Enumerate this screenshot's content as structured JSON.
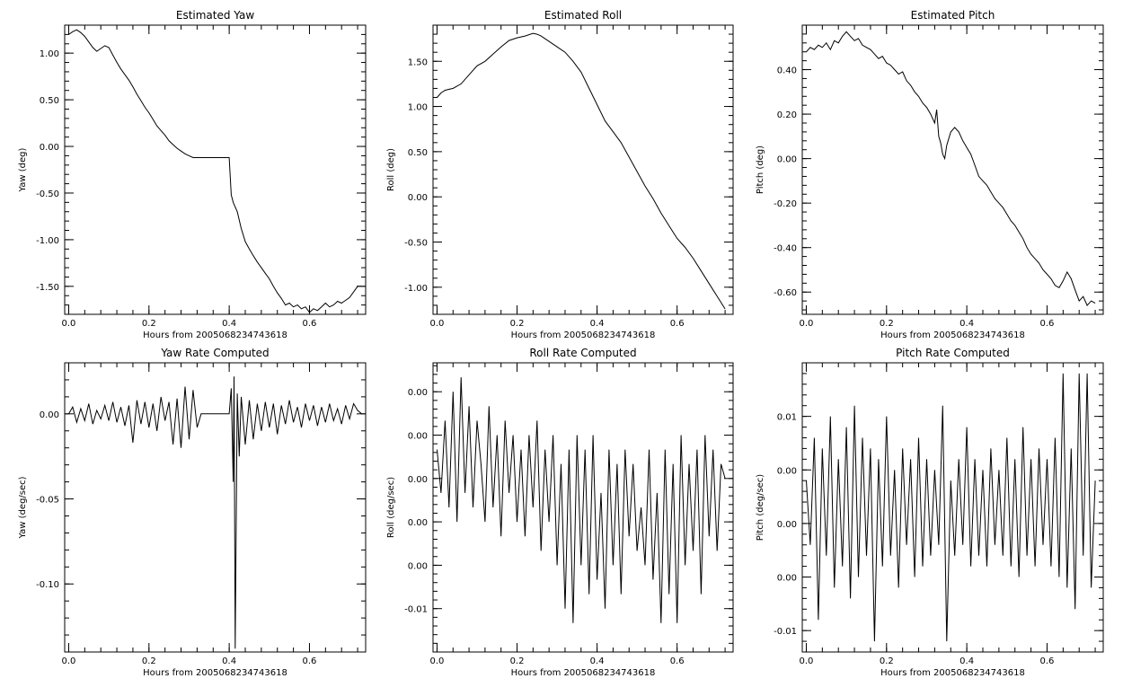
{
  "chart_data": [
    {
      "type": "line",
      "title": "Estimated Yaw",
      "xlabel": "Hours from 2005068234743618",
      "ylabel": "Yaw (deg)",
      "xlim": [
        -0.01,
        0.74
      ],
      "ylim": [
        -1.8,
        1.3
      ],
      "xticks": [
        0.0,
        0.2,
        0.4,
        0.6
      ],
      "xtick_labels": [
        "0.0",
        "0.2",
        "0.4",
        "0.6"
      ],
      "yticks": [
        1.0,
        0.5,
        0.0,
        -0.5,
        -1.0,
        -1.5
      ],
      "ytick_labels": [
        "1.00",
        "0.50",
        "0.00",
        "-0.50",
        "-1.00",
        "-1.50"
      ],
      "x": [
        0.0,
        0.01,
        0.02,
        0.03,
        0.04,
        0.05,
        0.06,
        0.07,
        0.08,
        0.09,
        0.1,
        0.11,
        0.12,
        0.13,
        0.14,
        0.15,
        0.16,
        0.17,
        0.18,
        0.19,
        0.2,
        0.21,
        0.22,
        0.23,
        0.24,
        0.25,
        0.26,
        0.27,
        0.28,
        0.29,
        0.3,
        0.31,
        0.32,
        0.35,
        0.38,
        0.4,
        0.405,
        0.41,
        0.42,
        0.43,
        0.44,
        0.45,
        0.46,
        0.47,
        0.48,
        0.49,
        0.5,
        0.51,
        0.52,
        0.53,
        0.54,
        0.55,
        0.56,
        0.57,
        0.58,
        0.59,
        0.6,
        0.61,
        0.62,
        0.63,
        0.64,
        0.65,
        0.66,
        0.67,
        0.68,
        0.69,
        0.7,
        0.71,
        0.72,
        0.73
      ],
      "values": [
        1.2,
        1.23,
        1.25,
        1.22,
        1.18,
        1.12,
        1.06,
        1.02,
        1.05,
        1.08,
        1.06,
        0.98,
        0.9,
        0.83,
        0.77,
        0.71,
        0.64,
        0.56,
        0.49,
        0.42,
        0.36,
        0.29,
        0.22,
        0.17,
        0.12,
        0.06,
        0.02,
        -0.02,
        -0.05,
        -0.08,
        -0.1,
        -0.12,
        -0.12,
        -0.12,
        -0.12,
        -0.12,
        -0.52,
        -0.6,
        -0.7,
        -0.88,
        -1.02,
        -1.1,
        -1.17,
        -1.24,
        -1.3,
        -1.36,
        -1.42,
        -1.5,
        -1.57,
        -1.63,
        -1.7,
        -1.68,
        -1.72,
        -1.7,
        -1.74,
        -1.72,
        -1.78,
        -1.74,
        -1.76,
        -1.72,
        -1.68,
        -1.72,
        -1.7,
        -1.66,
        -1.68,
        -1.65,
        -1.62,
        -1.56,
        -1.5,
        -1.5
      ]
    },
    {
      "type": "line",
      "title": "Estimated Roll",
      "xlabel": "Hours from 2005068234743618",
      "ylabel": "Roll (deg)",
      "xlim": [
        -0.01,
        0.74
      ],
      "ylim": [
        -1.3,
        1.9
      ],
      "xticks": [
        0.0,
        0.2,
        0.4,
        0.6
      ],
      "xtick_labels": [
        "0.0",
        "0.2",
        "0.4",
        "0.6"
      ],
      "yticks": [
        1.5,
        1.0,
        0.5,
        0.0,
        -0.5,
        -1.0
      ],
      "ytick_labels": [
        "1.50",
        "1.00",
        "0.50",
        "0.00",
        "-0.50",
        "-1.00"
      ],
      "x": [
        0.0,
        0.01,
        0.02,
        0.04,
        0.06,
        0.08,
        0.1,
        0.12,
        0.14,
        0.16,
        0.18,
        0.2,
        0.22,
        0.24,
        0.25,
        0.26,
        0.28,
        0.3,
        0.32,
        0.34,
        0.36,
        0.38,
        0.4,
        0.42,
        0.44,
        0.46,
        0.48,
        0.5,
        0.52,
        0.54,
        0.56,
        0.58,
        0.6,
        0.62,
        0.64,
        0.66,
        0.68,
        0.7,
        0.72
      ],
      "values": [
        1.1,
        1.15,
        1.18,
        1.2,
        1.25,
        1.35,
        1.45,
        1.5,
        1.58,
        1.66,
        1.73,
        1.76,
        1.78,
        1.81,
        1.8,
        1.78,
        1.72,
        1.66,
        1.6,
        1.5,
        1.38,
        1.2,
        1.02,
        0.84,
        0.72,
        0.6,
        0.44,
        0.28,
        0.12,
        -0.02,
        -0.18,
        -0.32,
        -0.46,
        -0.56,
        -0.68,
        -0.82,
        -0.96,
        -1.1,
        -1.24
      ]
    },
    {
      "type": "line",
      "title": "Estimated Pitch",
      "xlabel": "Hours from 2005068234743618",
      "ylabel": "Pitch (deg)",
      "xlim": [
        -0.01,
        0.74
      ],
      "ylim": [
        -0.7,
        0.6
      ],
      "xticks": [
        0.0,
        0.2,
        0.4,
        0.6
      ],
      "xtick_labels": [
        "0.0",
        "0.2",
        "0.4",
        "0.6"
      ],
      "yticks": [
        0.4,
        0.2,
        0.0,
        -0.2,
        -0.4,
        -0.6
      ],
      "ytick_labels": [
        "0.40",
        "0.20",
        "0.00",
        "-0.20",
        "-0.40",
        "-0.60"
      ],
      "x": [
        0.0,
        0.01,
        0.02,
        0.03,
        0.04,
        0.05,
        0.06,
        0.07,
        0.08,
        0.09,
        0.1,
        0.11,
        0.12,
        0.13,
        0.14,
        0.15,
        0.16,
        0.17,
        0.18,
        0.19,
        0.2,
        0.21,
        0.22,
        0.23,
        0.24,
        0.25,
        0.26,
        0.27,
        0.28,
        0.29,
        0.3,
        0.31,
        0.32,
        0.325,
        0.33,
        0.335,
        0.34,
        0.345,
        0.35,
        0.36,
        0.37,
        0.38,
        0.39,
        0.4,
        0.41,
        0.42,
        0.43,
        0.44,
        0.45,
        0.46,
        0.47,
        0.48,
        0.49,
        0.5,
        0.51,
        0.52,
        0.53,
        0.54,
        0.55,
        0.56,
        0.57,
        0.58,
        0.59,
        0.6,
        0.61,
        0.62,
        0.63,
        0.64,
        0.65,
        0.66,
        0.67,
        0.68,
        0.69,
        0.7,
        0.71,
        0.72
      ],
      "values": [
        0.48,
        0.5,
        0.49,
        0.51,
        0.5,
        0.52,
        0.49,
        0.53,
        0.52,
        0.55,
        0.57,
        0.55,
        0.53,
        0.54,
        0.51,
        0.5,
        0.49,
        0.47,
        0.45,
        0.46,
        0.43,
        0.42,
        0.4,
        0.38,
        0.39,
        0.35,
        0.33,
        0.3,
        0.28,
        0.25,
        0.23,
        0.2,
        0.16,
        0.22,
        0.1,
        0.07,
        0.02,
        0.0,
        0.06,
        0.12,
        0.14,
        0.12,
        0.08,
        0.05,
        0.02,
        -0.03,
        -0.08,
        -0.1,
        -0.12,
        -0.15,
        -0.18,
        -0.2,
        -0.22,
        -0.25,
        -0.28,
        -0.3,
        -0.33,
        -0.36,
        -0.4,
        -0.43,
        -0.45,
        -0.47,
        -0.5,
        -0.52,
        -0.54,
        -0.57,
        -0.58,
        -0.55,
        -0.51,
        -0.54,
        -0.59,
        -0.64,
        -0.62,
        -0.66,
        -0.64,
        -0.65
      ]
    },
    {
      "type": "line",
      "title": "Yaw Rate Computed",
      "xlabel": "Hours from 2005068234743618",
      "ylabel": "Yaw (deg/sec)",
      "xlim": [
        -0.01,
        0.74
      ],
      "ylim": [
        -0.14,
        0.03
      ],
      "xticks": [
        0.0,
        0.2,
        0.4,
        0.6
      ],
      "xtick_labels": [
        "0.0",
        "0.2",
        "0.4",
        "0.6"
      ],
      "yticks": [
        0.0,
        -0.05,
        -0.1
      ],
      "ytick_labels": [
        "0.00",
        "-0.05",
        "-0.10"
      ],
      "x": [
        0.0,
        0.01,
        0.02,
        0.03,
        0.04,
        0.05,
        0.06,
        0.07,
        0.08,
        0.09,
        0.1,
        0.11,
        0.12,
        0.13,
        0.14,
        0.15,
        0.16,
        0.17,
        0.18,
        0.19,
        0.2,
        0.21,
        0.22,
        0.23,
        0.24,
        0.25,
        0.26,
        0.27,
        0.28,
        0.29,
        0.3,
        0.31,
        0.32,
        0.33,
        0.36,
        0.4,
        0.405,
        0.41,
        0.412,
        0.415,
        0.42,
        0.425,
        0.43,
        0.44,
        0.45,
        0.46,
        0.47,
        0.48,
        0.49,
        0.5,
        0.51,
        0.52,
        0.53,
        0.54,
        0.55,
        0.56,
        0.57,
        0.58,
        0.59,
        0.6,
        0.61,
        0.62,
        0.63,
        0.64,
        0.65,
        0.66,
        0.67,
        0.68,
        0.69,
        0.7,
        0.71,
        0.72,
        0.73
      ],
      "values": [
        0.0,
        0.004,
        -0.005,
        0.003,
        -0.004,
        0.006,
        -0.006,
        0.002,
        -0.003,
        0.005,
        -0.004,
        0.007,
        -0.005,
        0.004,
        -0.007,
        0.005,
        -0.017,
        0.008,
        -0.006,
        0.007,
        -0.008,
        0.006,
        -0.01,
        0.01,
        -0.004,
        0.007,
        -0.018,
        0.009,
        -0.02,
        0.016,
        -0.015,
        0.014,
        -0.008,
        0.0,
        0.0,
        0.0,
        0.015,
        -0.04,
        0.022,
        -0.138,
        0.012,
        -0.025,
        0.01,
        -0.018,
        0.008,
        -0.015,
        0.006,
        -0.01,
        0.007,
        -0.008,
        0.006,
        -0.012,
        0.005,
        -0.006,
        0.008,
        -0.005,
        0.004,
        -0.008,
        0.006,
        -0.004,
        0.005,
        -0.007,
        0.004,
        -0.005,
        0.006,
        -0.004,
        0.003,
        -0.006,
        0.005,
        -0.003,
        0.006,
        0.002,
        0.0
      ]
    },
    {
      "type": "line",
      "title": "Roll Rate Computed",
      "xlabel": "Hours from 2005068234743618",
      "ylabel": "Roll (deg/sec)",
      "xlim": [
        -0.01,
        0.74
      ],
      "ylim": [
        -0.012,
        0.008
      ],
      "xticks": [
        0.0,
        0.2,
        0.4,
        0.6
      ],
      "xtick_labels": [
        "0.0",
        "0.2",
        "0.4",
        "0.6"
      ],
      "yticks": [
        0.006,
        0.003,
        0.0,
        -0.003,
        -0.006,
        -0.009
      ],
      "ytick_labels": [
        "0.00",
        "0.00",
        "0.00",
        "0.00",
        "0.00",
        "-0.01"
      ],
      "x": [
        0.0,
        0.01,
        0.02,
        0.03,
        0.04,
        0.05,
        0.06,
        0.07,
        0.08,
        0.09,
        0.1,
        0.11,
        0.12,
        0.13,
        0.14,
        0.15,
        0.16,
        0.17,
        0.18,
        0.19,
        0.2,
        0.21,
        0.22,
        0.23,
        0.24,
        0.25,
        0.26,
        0.27,
        0.28,
        0.29,
        0.3,
        0.31,
        0.32,
        0.33,
        0.34,
        0.35,
        0.36,
        0.37,
        0.38,
        0.39,
        0.4,
        0.41,
        0.42,
        0.43,
        0.44,
        0.45,
        0.46,
        0.47,
        0.48,
        0.49,
        0.5,
        0.51,
        0.52,
        0.53,
        0.54,
        0.55,
        0.56,
        0.57,
        0.58,
        0.59,
        0.6,
        0.61,
        0.62,
        0.63,
        0.64,
        0.65,
        0.66,
        0.67,
        0.68,
        0.69,
        0.7,
        0.71,
        0.72
      ],
      "values": [
        0.002,
        -0.001,
        0.004,
        -0.002,
        0.006,
        -0.003,
        0.007,
        -0.001,
        0.005,
        -0.002,
        0.004,
        0.001,
        -0.003,
        0.005,
        -0.002,
        0.003,
        -0.004,
        0.004,
        -0.001,
        0.003,
        -0.003,
        0.002,
        -0.004,
        0.003,
        -0.002,
        0.004,
        -0.005,
        0.002,
        -0.003,
        0.003,
        -0.006,
        0.001,
        -0.009,
        0.002,
        -0.01,
        0.003,
        -0.006,
        0.002,
        -0.008,
        0.003,
        -0.007,
        -0.001,
        -0.009,
        0.002,
        -0.006,
        0.001,
        -0.008,
        0.002,
        -0.004,
        0.001,
        -0.005,
        -0.002,
        -0.006,
        0.002,
        -0.007,
        -0.001,
        -0.01,
        0.002,
        -0.008,
        0.001,
        -0.01,
        0.003,
        -0.006,
        0.001,
        -0.005,
        0.002,
        -0.008,
        0.003,
        -0.004,
        0.002,
        -0.005,
        0.001,
        0.0
      ]
    },
    {
      "type": "line",
      "title": "Pitch Rate Computed",
      "xlabel": "Hours from 2005068234743618",
      "ylabel": "Pitch (deg/sec)",
      "xlim": [
        -0.01,
        0.74
      ],
      "ylim": [
        -0.012,
        0.015
      ],
      "xticks": [
        0.0,
        0.2,
        0.4,
        0.6
      ],
      "xtick_labels": [
        "0.0",
        "0.2",
        "0.4",
        "0.6"
      ],
      "yticks": [
        0.01,
        0.005,
        0.0,
        -0.005,
        -0.01
      ],
      "ytick_labels": [
        "0.01",
        "0.00",
        "0.00",
        "0.00",
        "-0.01"
      ],
      "x": [
        0.0,
        0.01,
        0.02,
        0.03,
        0.04,
        0.05,
        0.06,
        0.07,
        0.08,
        0.09,
        0.1,
        0.11,
        0.12,
        0.13,
        0.14,
        0.15,
        0.16,
        0.17,
        0.18,
        0.19,
        0.2,
        0.21,
        0.22,
        0.23,
        0.24,
        0.25,
        0.26,
        0.27,
        0.28,
        0.29,
        0.3,
        0.31,
        0.32,
        0.33,
        0.34,
        0.35,
        0.36,
        0.37,
        0.38,
        0.39,
        0.4,
        0.41,
        0.42,
        0.43,
        0.44,
        0.45,
        0.46,
        0.47,
        0.48,
        0.49,
        0.5,
        0.51,
        0.52,
        0.53,
        0.54,
        0.55,
        0.56,
        0.57,
        0.58,
        0.59,
        0.6,
        0.61,
        0.62,
        0.63,
        0.64,
        0.65,
        0.66,
        0.67,
        0.68,
        0.69,
        0.7,
        0.71,
        0.72
      ],
      "values": [
        0.004,
        -0.002,
        0.008,
        -0.009,
        0.007,
        -0.003,
        0.01,
        -0.006,
        0.006,
        -0.004,
        0.009,
        -0.007,
        0.011,
        -0.005,
        0.008,
        -0.003,
        0.007,
        -0.011,
        0.006,
        -0.004,
        0.01,
        -0.003,
        0.005,
        -0.006,
        0.007,
        -0.002,
        0.006,
        -0.005,
        0.008,
        -0.004,
        0.006,
        -0.003,
        0.005,
        -0.002,
        0.011,
        -0.011,
        0.004,
        -0.003,
        0.006,
        -0.002,
        0.009,
        -0.004,
        0.006,
        -0.003,
        0.005,
        -0.004,
        0.007,
        -0.002,
        0.005,
        -0.003,
        0.008,
        -0.004,
        0.006,
        -0.005,
        0.009,
        -0.003,
        0.006,
        -0.004,
        0.007,
        -0.002,
        0.006,
        -0.004,
        0.008,
        -0.005,
        0.014,
        -0.006,
        0.007,
        -0.008,
        0.014,
        -0.003,
        0.014,
        -0.006,
        0.004
      ]
    }
  ]
}
